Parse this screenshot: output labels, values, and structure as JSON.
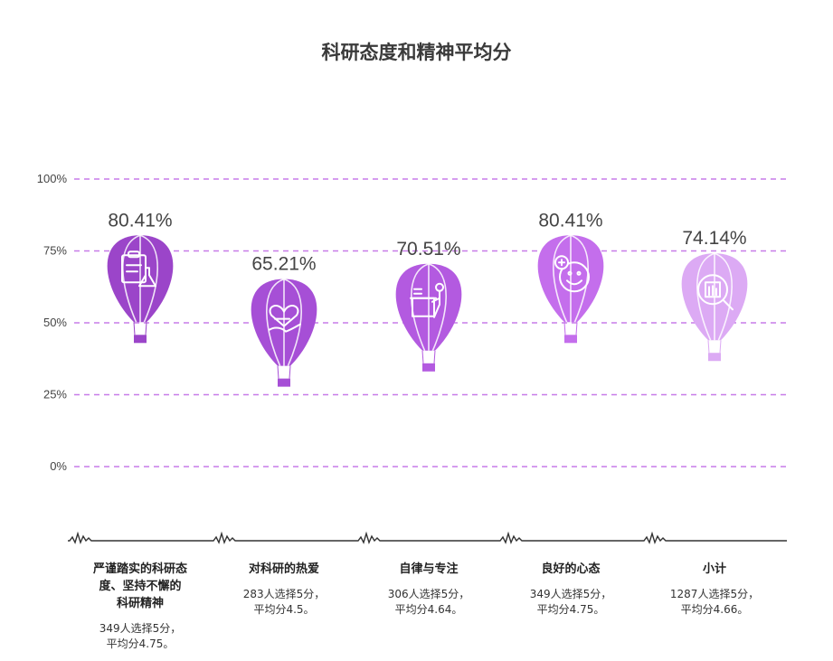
{
  "chart_data": {
    "type": "bar",
    "title": "科研态度和精神平均分",
    "ylim": [
      0,
      100
    ],
    "yticks": [
      "0%",
      "25%",
      "50%",
      "75%",
      "100%"
    ],
    "grid": true,
    "categories": [
      {
        "label": "严谨踏实的科研态度、坚持不懈的科研精神",
        "label_lines": [
          "严谨踏实的科研态",
          "度、坚持不懈的",
          "科研精神"
        ],
        "note_lines": [
          "349人选择5分，",
          "平均分4.75。"
        ],
        "value": 80.41,
        "value_label": "80.41%",
        "color": "#9b45c9",
        "icon": "clipboard-flask-icon"
      },
      {
        "label": "对科研的热爱",
        "label_lines": [
          "对科研的热爱"
        ],
        "note_lines": [
          "283人选择5分，",
          "平均分4.5。"
        ],
        "value": 65.21,
        "value_label": "65.21%",
        "color": "#a64fd6",
        "icon": "heart-hand-icon"
      },
      {
        "label": "自律与专注",
        "label_lines": [
          "自律与专注"
        ],
        "note_lines": [
          "306人选择5分，",
          "平均分4.64。"
        ],
        "value": 70.51,
        "value_label": "70.51%",
        "color": "#b35ae0",
        "icon": "person-desk-icon"
      },
      {
        "label": "良好的心态",
        "label_lines": [
          "良好的心态"
        ],
        "note_lines": [
          "349人选择5分，",
          "平均分4.75。"
        ],
        "value": 80.41,
        "value_label": "80.41%",
        "color": "#c46eec",
        "icon": "smiley-plus-icon"
      },
      {
        "label": "小计",
        "label_lines": [
          "小计"
        ],
        "note_lines": [
          "1287人选择5分，",
          "平均分4.66。"
        ],
        "value": 74.14,
        "value_label": "74.14%",
        "color": "#dcaaf4",
        "icon": "magnifier-document-icon"
      }
    ]
  },
  "colors": {
    "grid": "#c77be8",
    "axis": "#333333"
  }
}
